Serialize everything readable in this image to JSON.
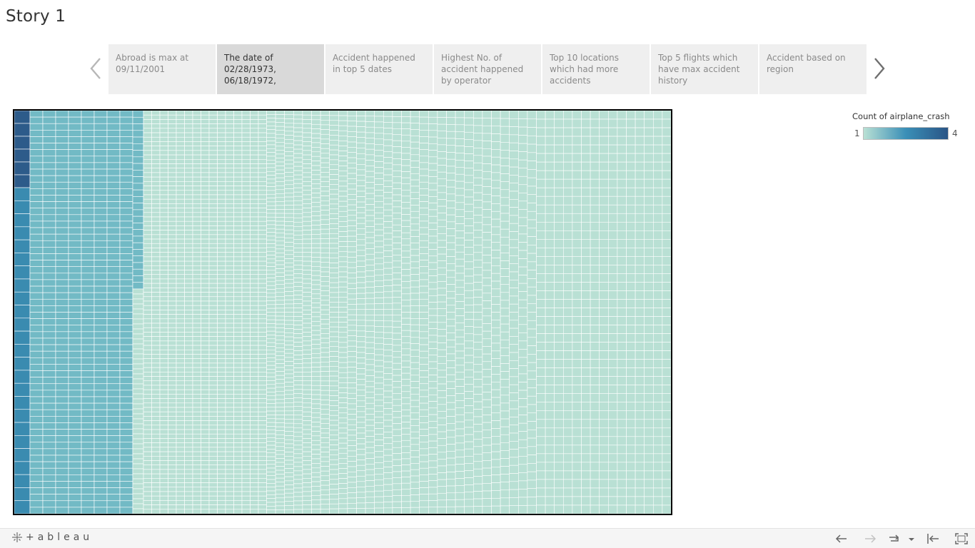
{
  "story": {
    "title": "Story 1"
  },
  "navigator": {
    "prev_icon": "chevron-left-icon",
    "next_icon": "chevron-right-icon",
    "points": [
      {
        "label": "Abroad is max at 09/11/2001",
        "active": false
      },
      {
        "label": "The date of 02/28/1973, 06/18/1972,",
        "active": true
      },
      {
        "label": "Accident happened in top 5 dates",
        "active": false
      },
      {
        "label": "Highest No. of accident happened by operator",
        "active": false
      },
      {
        "label": "Top 10 locations which had more accidents",
        "active": false
      },
      {
        "label": "Top 5 flights which have max accident history",
        "active": false
      },
      {
        "label": "Accident based on region",
        "active": false
      }
    ]
  },
  "legend": {
    "title": "Count of airplane_crash",
    "min": "1",
    "max": "4",
    "colors": [
      "#b9e0d4",
      "#3a8fb7",
      "#2a5586"
    ]
  },
  "chart_data": {
    "type": "heatmap",
    "measure": "Count of airplane_crash",
    "color_range": [
      1,
      4
    ],
    "groups": [
      {
        "value": 4,
        "color": "#2d5b8a"
      },
      {
        "value": 3,
        "color": "#3a8bb0"
      },
      {
        "value": 2,
        "color": "#72bac5"
      },
      {
        "value": 1,
        "color": "#b9e0d4"
      }
    ]
  },
  "footer": {
    "logo_text": "+ableau",
    "logo_icon": "tableau-logo-icon",
    "controls": [
      "undo-icon",
      "redo-icon",
      "revert-icon",
      "dropdown-icon",
      "reset-icon",
      "fullscreen-icon"
    ]
  }
}
